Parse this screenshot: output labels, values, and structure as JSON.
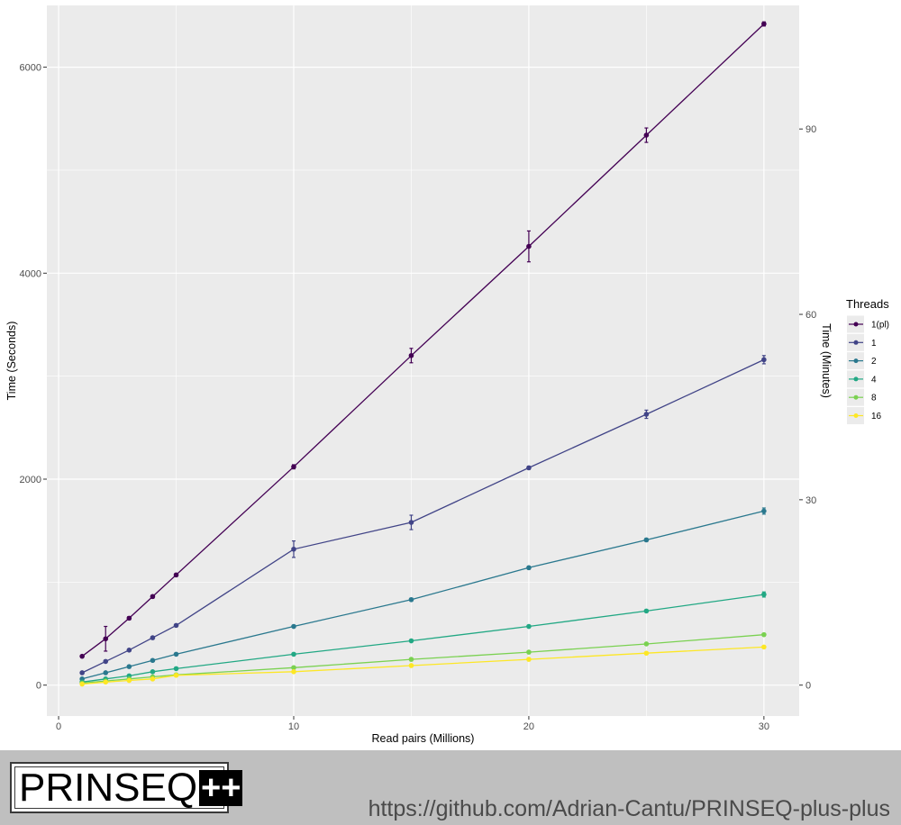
{
  "chart_data": {
    "type": "line",
    "xlabel": "Read pairs (Millions)",
    "ylabel": "Time (Seconds)",
    "y2label": "Time (Minutes)",
    "xlim": [
      -0.5,
      31.5
    ],
    "ylim": [
      -300,
      6600
    ],
    "y2lim": [
      -5,
      110
    ],
    "x_ticks": [
      0,
      10,
      20,
      30
    ],
    "y_ticks": [
      0,
      2000,
      4000,
      6000
    ],
    "y2_ticks": [
      0,
      30,
      60,
      90
    ],
    "grid": true,
    "legend_title": "Threads",
    "legend_position": "right",
    "x": [
      1,
      2,
      3,
      4,
      5,
      10,
      15,
      20,
      25,
      30
    ],
    "series": [
      {
        "name": "1(pl)",
        "color": "#440154",
        "values": [
          280,
          450,
          650,
          860,
          1070,
          2120,
          3200,
          4260,
          5340,
          6420
        ],
        "err": [
          10,
          120,
          15,
          15,
          15,
          20,
          70,
          150,
          70,
          20
        ]
      },
      {
        "name": "1",
        "color": "#414487",
        "values": [
          120,
          230,
          340,
          460,
          580,
          1320,
          1580,
          2110,
          2630,
          3160
        ],
        "err": [
          10,
          10,
          10,
          10,
          10,
          80,
          70,
          15,
          40,
          40
        ]
      },
      {
        "name": "2",
        "color": "#2A788E",
        "values": [
          60,
          120,
          180,
          240,
          300,
          570,
          830,
          1140,
          1410,
          1690
        ],
        "err": [
          5,
          5,
          5,
          5,
          5,
          10,
          15,
          15,
          15,
          30
        ]
      },
      {
        "name": "4",
        "color": "#22A884",
        "values": [
          30,
          60,
          90,
          130,
          160,
          300,
          430,
          570,
          720,
          880
        ],
        "err": [
          5,
          5,
          5,
          5,
          5,
          10,
          10,
          10,
          10,
          25
        ]
      },
      {
        "name": "8",
        "color": "#7AD151",
        "values": [
          20,
          40,
          60,
          80,
          100,
          170,
          250,
          320,
          400,
          490
        ],
        "err": [
          5,
          5,
          5,
          5,
          5,
          5,
          5,
          5,
          5,
          10
        ]
      },
      {
        "name": "16",
        "color": "#FDE725",
        "values": [
          10,
          30,
          45,
          60,
          95,
          130,
          190,
          250,
          310,
          370
        ],
        "err": [
          5,
          5,
          5,
          5,
          5,
          5,
          5,
          5,
          5,
          10
        ]
      }
    ]
  },
  "footer": {
    "logo_text": "PRINSEQ",
    "logo_plus": "++",
    "url": "https://github.com/Adrian-Cantu/PRINSEQ-plus-plus"
  },
  "colors": {
    "panel_bg": "#ebebeb",
    "grid": "#ffffff",
    "footer_bg": "#bfbfbf"
  }
}
